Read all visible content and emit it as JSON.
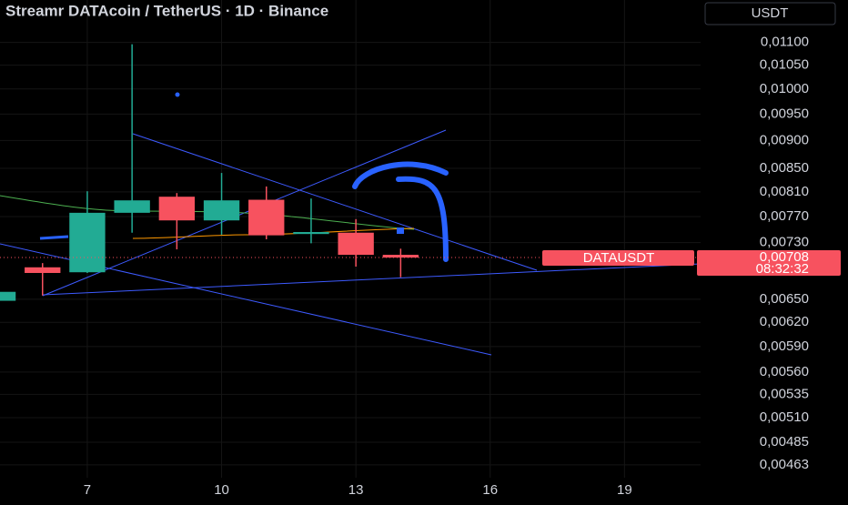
{
  "toolbar": {
    "currency": "USDT"
  },
  "chart_data": {
    "type": "candlestick",
    "title": "Streamr DATAcoin / TetherUS · 1D · Binance",
    "x": [
      5,
      6,
      7,
      8,
      9,
      10,
      11,
      12,
      13,
      14
    ],
    "open": [
      0.00648,
      0.00694,
      0.00687,
      0.00776,
      0.00802,
      0.00764,
      0.00797,
      0.00743,
      0.00745,
      0.00712
    ],
    "high": [
      0.0066,
      0.007,
      0.00811,
      0.01096,
      0.00808,
      0.00842,
      0.00819,
      0.00799,
      0.00766,
      0.00721
    ],
    "low": [
      0.00648,
      0.00655,
      0.00686,
      0.00745,
      0.0072,
      0.00742,
      0.00735,
      0.00729,
      0.00695,
      0.0068
    ],
    "close": [
      0.0066,
      0.00686,
      0.00776,
      0.00796,
      0.00764,
      0.00796,
      0.00741,
      0.00746,
      0.00712,
      0.00708
    ],
    "up_color": "#22ab94",
    "down_color": "#f7525f",
    "log_scale": true,
    "grid": true,
    "xlim": [
      5.05,
      20.7
    ],
    "xticks": [
      7,
      10,
      13,
      16,
      19
    ],
    "ylim": [
      0.00451,
      0.012
    ],
    "yticks": [
      {
        "value": 0.011,
        "label": "0,01100"
      },
      {
        "value": 0.0105,
        "label": "0,01050"
      },
      {
        "value": 0.01,
        "label": "0,01000"
      },
      {
        "value": 0.0095,
        "label": "0,00950"
      },
      {
        "value": 0.009,
        "label": "0,00900"
      },
      {
        "value": 0.0085,
        "label": "0,00850"
      },
      {
        "value": 0.0081,
        "label": "0,00810"
      },
      {
        "value": 0.0077,
        "label": "0,00770"
      },
      {
        "value": 0.0073,
        "label": "0,00730"
      },
      {
        "value": 0.0065,
        "label": "0,00650"
      },
      {
        "value": 0.0062,
        "label": "0,00620"
      },
      {
        "value": 0.0059,
        "label": "0,00590"
      },
      {
        "value": 0.0056,
        "label": "0,00560"
      },
      {
        "value": 0.00535,
        "label": "0,00535"
      },
      {
        "value": 0.0051,
        "label": "0,00510"
      },
      {
        "value": 0.00485,
        "label": "0,00485"
      },
      {
        "value": 0.00463,
        "label": "0,00463"
      }
    ],
    "symbol": "DATAUSDT",
    "last_price": {
      "value": 0.00708,
      "label": "0,00708"
    },
    "countdown": "08:32:32"
  }
}
